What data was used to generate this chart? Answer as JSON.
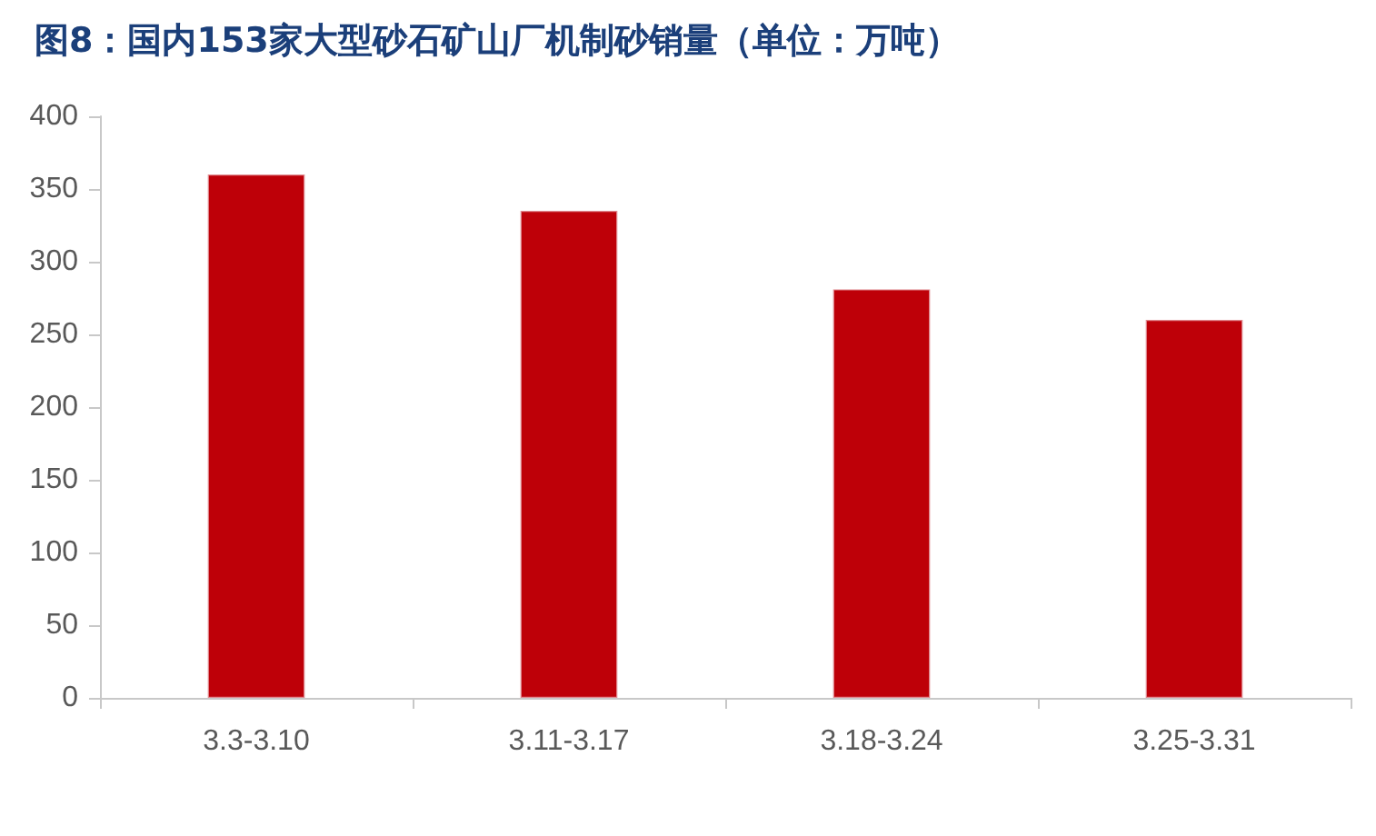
{
  "chart_data": {
    "type": "bar",
    "title": "图8：国内153家大型砂石矿山厂机制砂销量（单位：万吨）",
    "categories": [
      "3.3-3.10",
      "3.11-3.17",
      "3.18-3.24",
      "3.25-3.31"
    ],
    "values": [
      360,
      335,
      281,
      260
    ],
    "color": "#be0008",
    "ylim": [
      0,
      400
    ],
    "yticks": [
      0,
      50,
      100,
      150,
      200,
      250,
      300,
      350,
      400
    ]
  }
}
